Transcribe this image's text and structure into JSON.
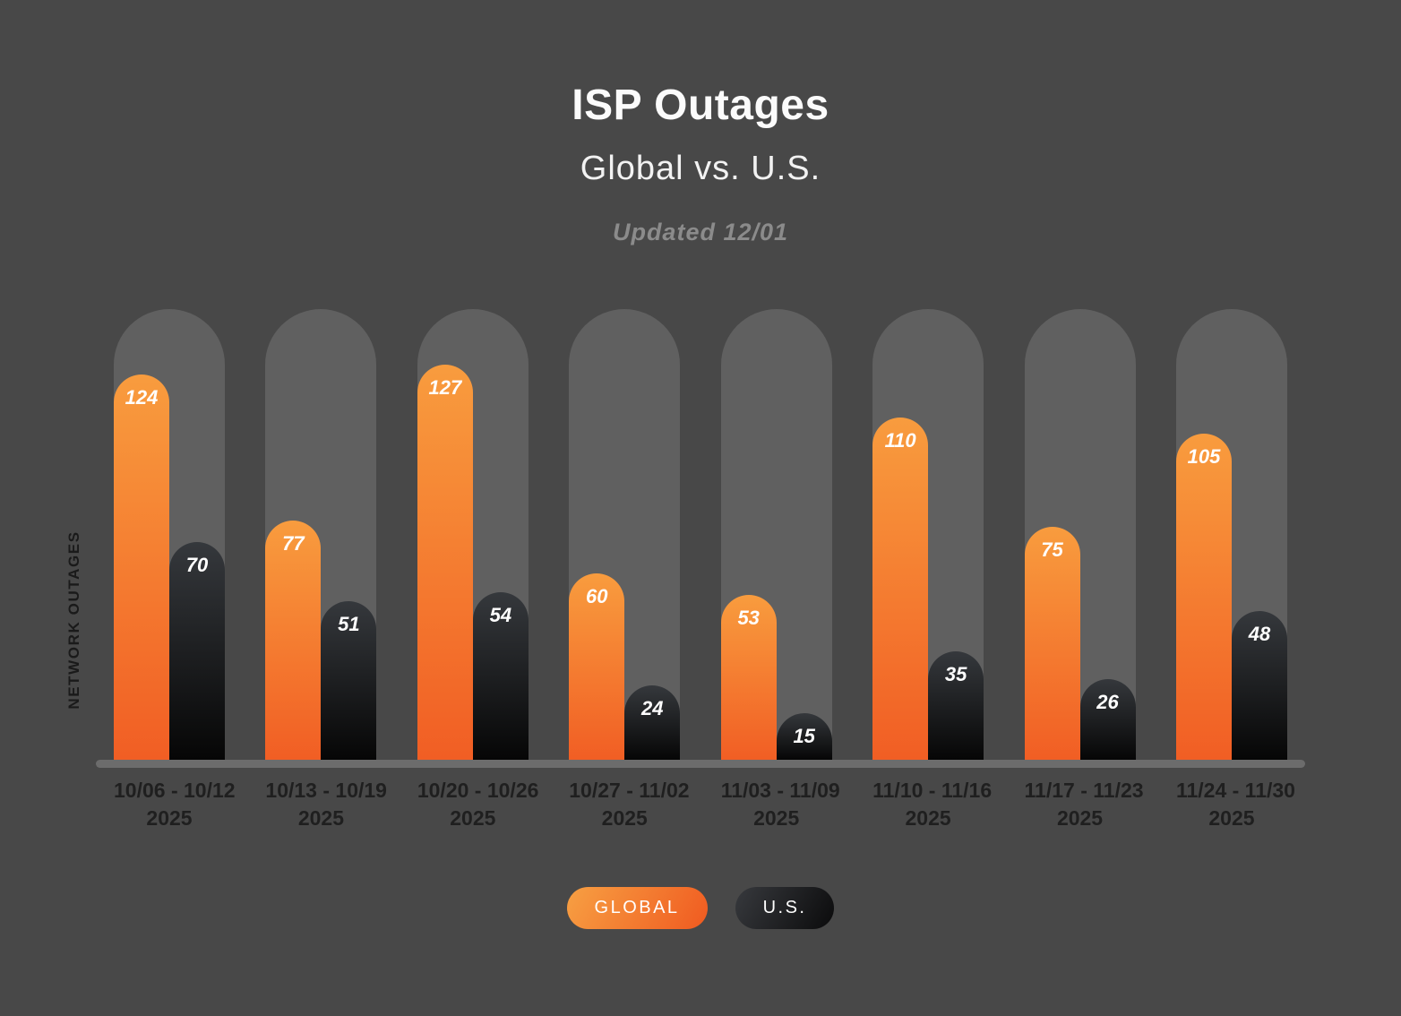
{
  "chart_data": {
    "type": "bar",
    "title": "ISP Outages",
    "subtitle": "Global vs. U.S.",
    "annotation": "Updated 12/01",
    "xlabel": "",
    "ylabel": "NETWORK OUTAGES",
    "ylim": [
      0,
      145
    ],
    "grid": false,
    "legend_position": "bottom-center",
    "bar_value_labels": true,
    "categories": [
      {
        "range": "10/06 - 10/12",
        "year": "2025"
      },
      {
        "range": "10/13 - 10/19",
        "year": "2025"
      },
      {
        "range": "10/20 - 10/26",
        "year": "2025"
      },
      {
        "range": "10/27 - 11/02",
        "year": "2025"
      },
      {
        "range": "11/03 - 11/09",
        "year": "2025"
      },
      {
        "range": "11/10 - 11/16",
        "year": "2025"
      },
      {
        "range": "11/17 - 11/23",
        "year": "2025"
      },
      {
        "range": "11/24 - 11/30",
        "year": "2025"
      }
    ],
    "series": [
      {
        "name": "GLOBAL",
        "values": [
          124,
          77,
          127,
          60,
          53,
          110,
          75,
          105
        ],
        "gradient_top": "#f89c3e",
        "gradient_bottom": "#f15e24"
      },
      {
        "name": "U.S.",
        "values": [
          70,
          51,
          54,
          24,
          15,
          35,
          26,
          48
        ],
        "gradient_top": "#35383c",
        "gradient_bottom": "#060606"
      }
    ]
  },
  "colors": {
    "background": "#484848",
    "track": "#606060",
    "axis_line": "#6c6c6c",
    "value_label": "#ffffff",
    "x_label": "#1f1f1f",
    "y_label": "#1a1a1a",
    "title": "#fbfbfb",
    "subtitle": "#f2f2f2",
    "updated": "#8b8b8b"
  }
}
